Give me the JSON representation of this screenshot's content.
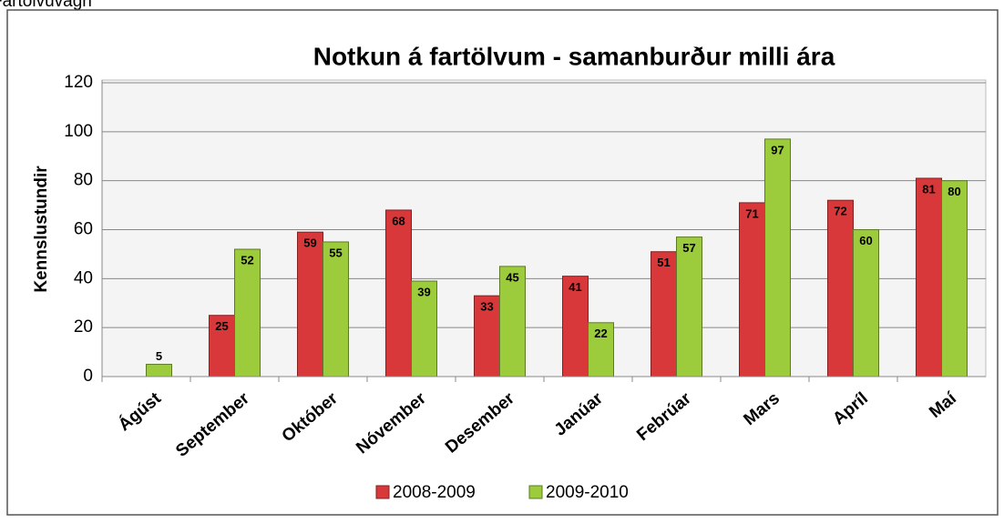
{
  "caption": "Fartölvuvagn",
  "chart_data": {
    "type": "bar",
    "title": "Notkun á fartölvum - samanburður milli ára",
    "y_label": "Kennslustundir",
    "categories": [
      "Ágúst",
      "September",
      "Október",
      "Nóvember",
      "Desember",
      "Janúar",
      "Febrúar",
      "Mars",
      "Apríl",
      "Maí"
    ],
    "series": [
      {
        "name": "2008-2009",
        "color": "#d9383a",
        "values": [
          null,
          25,
          59,
          68,
          33,
          41,
          51,
          71,
          72,
          81
        ]
      },
      {
        "name": "2009-2010",
        "color": "#9ccb3b",
        "values": [
          5,
          52,
          55,
          39,
          45,
          22,
          57,
          97,
          60,
          80
        ]
      }
    ],
    "ylim": [
      0,
      120
    ],
    "yticks": [
      0,
      20,
      40,
      60,
      80,
      100,
      120
    ],
    "grid": true,
    "legend": "bottom"
  }
}
